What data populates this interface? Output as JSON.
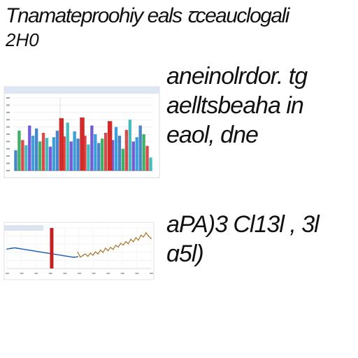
{
  "title": {
    "line1": "Tnamateproohiy  eals ꞇcеаuclogali",
    "line2": "2H0"
  },
  "notes": {
    "top": [
      "aneinolrdor.  tg",
      "aelltsbeaha  in",
      "eaol, dne"
    ],
    "bottom": [
      "aPA)3  Cl13l ,  3l",
      "ɑ5l)"
    ]
  },
  "chart_data": [
    {
      "type": "bar",
      "title": "",
      "xlabel": "",
      "ylabel": "",
      "grid": true,
      "legend": "none",
      "ylim": [
        0,
        100
      ],
      "colors": [
        "#2a6fbf",
        "#1fa24a",
        "#d42a2a",
        "#27b0b0",
        "#5b3fd0",
        "#1b8fd6"
      ],
      "values": [
        28,
        55,
        42,
        35,
        62,
        48,
        58,
        40,
        52,
        45,
        33,
        46,
        55,
        72,
        47,
        66,
        40,
        54,
        44,
        73,
        48,
        36,
        62,
        50,
        38,
        44,
        52,
        68,
        42,
        60,
        48,
        30,
        56,
        70,
        40,
        46,
        62,
        50,
        34,
        18
      ],
      "highlight_values": [
        {
          "index": 13,
          "value": 72,
          "color": "#d42a2a"
        },
        {
          "index": 19,
          "value": 73,
          "color": "#d42a2a"
        },
        {
          "index": 27,
          "value": 68,
          "color": "#d42a2a"
        }
      ]
    },
    {
      "type": "line",
      "title": "",
      "xlabel": "",
      "ylabel": "",
      "grid": true,
      "legend": "none",
      "ylim": [
        0,
        100
      ],
      "series": [
        {
          "color": "#1f5fb0",
          "values": [
            48,
            49,
            50,
            51,
            50,
            49,
            48,
            47,
            46,
            45,
            44,
            43,
            42,
            41,
            40,
            39,
            38,
            37,
            36,
            35,
            34,
            33,
            32,
            31,
            30,
            29,
            28,
            28,
            29
          ]
        },
        {
          "color": "#a8752a",
          "values": [
            40,
            28,
            32,
            36,
            30,
            38,
            33,
            41,
            36,
            45,
            40,
            50,
            44,
            52,
            47,
            57,
            53,
            62,
            58,
            66,
            61,
            72,
            66,
            76,
            70,
            82,
            78,
            88,
            80,
            74
          ]
        }
      ],
      "marker": {
        "index": 17,
        "value": 100,
        "color": "#c42020"
      }
    }
  ]
}
